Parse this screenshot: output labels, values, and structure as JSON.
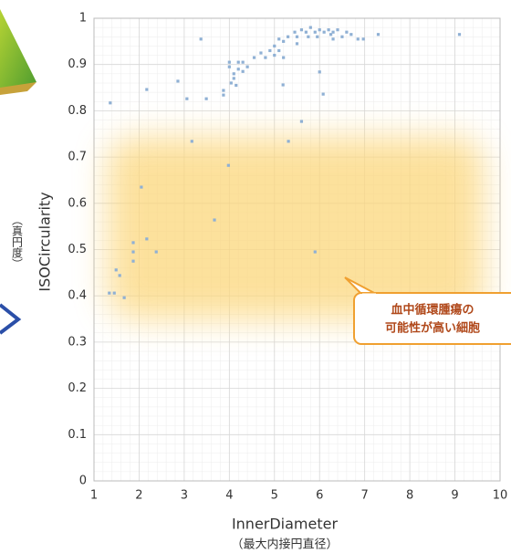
{
  "chart_data": {
    "type": "scatter",
    "xlabel": "InnerDiameter",
    "xlabel_sub": "（最大内接円直径）",
    "ylabel": "ISOCircularity",
    "ylabel_sub": "（真円度）",
    "annotations": [
      "血中循環腫瘍の",
      "可能性が高い細胞"
    ],
    "color": "#8fb0d4",
    "x": [
      1.36,
      1.34,
      1.45,
      1.49,
      1.57,
      1.67,
      1.87,
      1.87,
      1.87,
      2.05,
      2.17,
      2.38,
      2.17,
      2.86,
      3.06,
      3.17,
      3.37,
      3.49,
      3.67,
      3.98,
      3.87,
      3.87,
      4.0,
      4.0,
      4.1,
      4.1,
      4.2,
      4.2,
      4.3,
      4.3,
      4.4,
      4.04,
      4.15,
      4.55,
      4.7,
      4.8,
      4.9,
      5.0,
      5.0,
      5.1,
      5.1,
      5.2,
      5.3,
      5.2,
      5.19,
      5.31,
      5.6,
      5.9,
      6.0,
      6.08,
      5.45,
      5.5,
      5.6,
      5.7,
      5.75,
      5.8,
      5.9,
      5.95,
      6.0,
      6.1,
      6.2,
      6.25,
      6.3,
      6.4,
      6.5,
      6.6,
      6.7,
      6.85,
      6.97,
      7.3,
      9.1,
      5.5,
      6.3
    ],
    "values": [
      0.817,
      0.406,
      0.406,
      0.456,
      0.444,
      0.396,
      0.515,
      0.495,
      0.475,
      0.635,
      0.523,
      0.495,
      0.846,
      0.864,
      0.826,
      0.734,
      0.955,
      0.826,
      0.564,
      0.682,
      0.844,
      0.834,
      0.905,
      0.895,
      0.88,
      0.87,
      0.905,
      0.89,
      0.905,
      0.885,
      0.895,
      0.86,
      0.855,
      0.915,
      0.925,
      0.915,
      0.93,
      0.94,
      0.92,
      0.955,
      0.93,
      0.95,
      0.96,
      0.915,
      0.856,
      0.734,
      0.777,
      0.495,
      0.884,
      0.836,
      0.97,
      0.96,
      0.975,
      0.97,
      0.96,
      0.98,
      0.97,
      0.96,
      0.975,
      0.97,
      0.975,
      0.965,
      0.97,
      0.975,
      0.96,
      0.97,
      0.965,
      0.955,
      0.955,
      0.965,
      0.965,
      0.945,
      0.955
    ],
    "xlim": [
      1,
      10
    ],
    "xticks": [
      1,
      2,
      3,
      4,
      5,
      6,
      7,
      8,
      9,
      10
    ],
    "ylim": [
      0,
      1
    ],
    "yticks": [
      0,
      0.1,
      0.2,
      0.3,
      0.4,
      0.5,
      0.6,
      0.7,
      0.8,
      0.9,
      1
    ],
    "grid": true,
    "minor_grid": true
  }
}
